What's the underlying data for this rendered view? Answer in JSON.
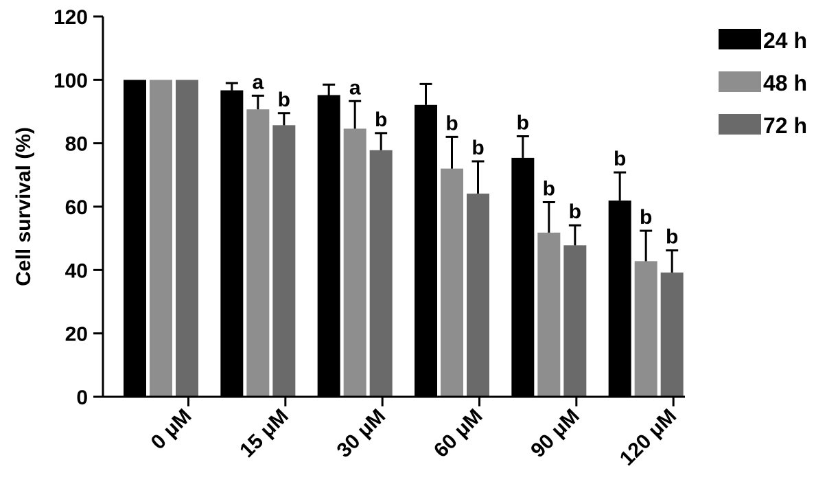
{
  "chart_data": {
    "type": "bar",
    "ylabel": "Cell survival (%)",
    "xlabel": "",
    "ylim": [
      0,
      120
    ],
    "yticks": [
      "0",
      "20",
      "40",
      "60",
      "80",
      "100",
      "120"
    ],
    "categories": [
      "0  μM",
      "15  μM",
      "30  μM",
      "60  μM",
      "90  μM",
      "120  μM"
    ],
    "legend_position": "top-right",
    "series": [
      {
        "name": "24 h",
        "color": "#000000",
        "values": [
          100,
          96.7,
          95.2,
          92.1,
          75.4,
          61.9
        ],
        "errors": [
          0,
          2.3,
          3.3,
          6.6,
          6.8,
          8.9
        ],
        "significance": [
          "",
          "",
          "",
          "",
          "b",
          "b"
        ]
      },
      {
        "name": "48 h",
        "color": "#8e8e8e",
        "values": [
          100,
          90.7,
          84.6,
          72.0,
          51.8,
          42.8
        ],
        "errors": [
          0,
          4.3,
          8.7,
          10.0,
          9.6,
          9.6
        ],
        "significance": [
          "",
          "a",
          "a",
          "b",
          "b",
          "b"
        ]
      },
      {
        "name": "72 h",
        "color": "#6a6a6a",
        "values": [
          100,
          85.7,
          77.8,
          64.1,
          47.8,
          39.2
        ],
        "errors": [
          0,
          3.8,
          5.4,
          10.2,
          6.3,
          7.0
        ],
        "significance": [
          "",
          "b",
          "b",
          "b",
          "b",
          "b"
        ]
      }
    ]
  }
}
